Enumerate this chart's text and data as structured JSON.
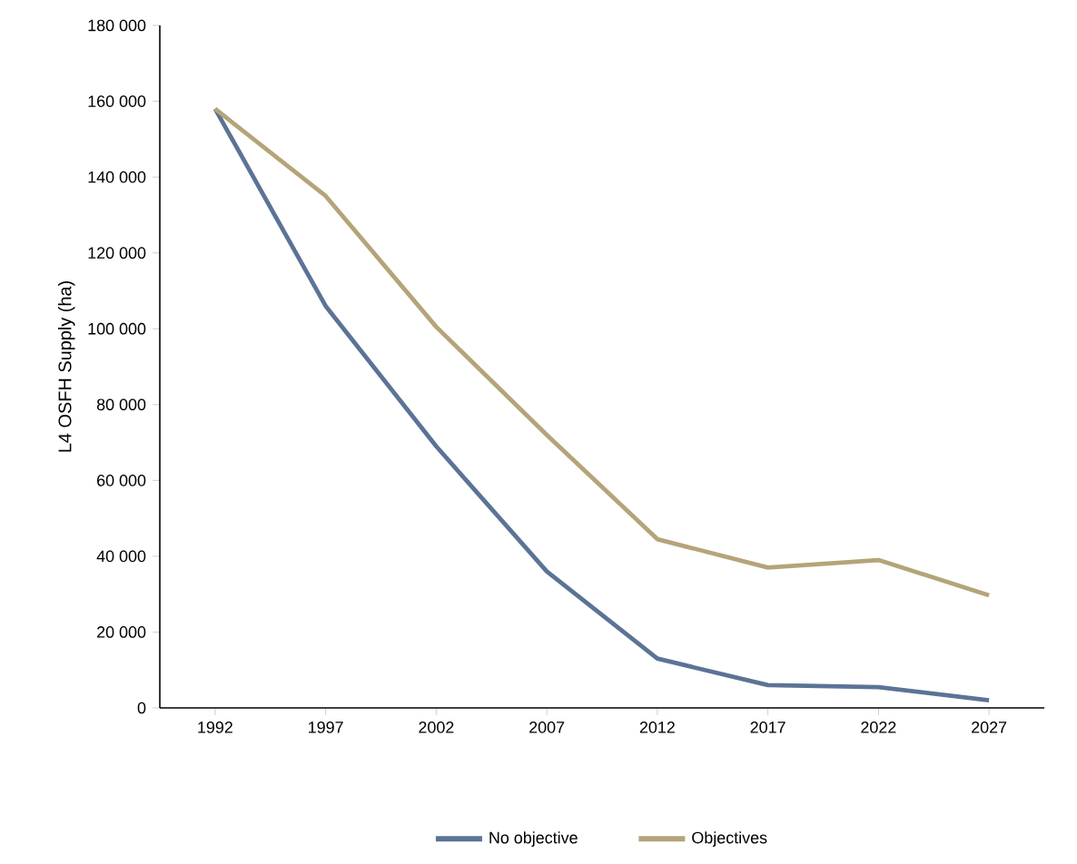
{
  "chart_data": {
    "type": "line",
    "ylabel": "L4 OSFH Supply (ha)",
    "categories": [
      "1992",
      "1997",
      "2002",
      "2007",
      "2012",
      "2017",
      "2022",
      "2027"
    ],
    "ylim": [
      0,
      180000
    ],
    "yticks": [
      0,
      {
        "value": 20000,
        "label": "20 000"
      },
      {
        "value": 40000,
        "label": "40 000"
      },
      {
        "value": 60000,
        "label": "60 000"
      },
      {
        "value": 80000,
        "label": "80 000"
      },
      {
        "value": 100000,
        "label": "100 000"
      },
      {
        "value": 120000,
        "label": "120 000"
      },
      {
        "value": 140000,
        "label": "140 000"
      },
      {
        "value": 160000,
        "label": "160 000"
      },
      {
        "value": 180000,
        "label": "180 000"
      }
    ],
    "series": [
      {
        "name": "No objective",
        "color": "#5b7396",
        "values": [
          158000,
          106000,
          69000,
          36000,
          13000,
          6000,
          5500,
          2000
        ]
      },
      {
        "name": "Objectives",
        "color": "#b5a47a",
        "values": [
          158000,
          135000,
          100500,
          72000,
          44500,
          37000,
          39000,
          29700
        ]
      }
    ],
    "grid": false,
    "legend": "bottom"
  }
}
